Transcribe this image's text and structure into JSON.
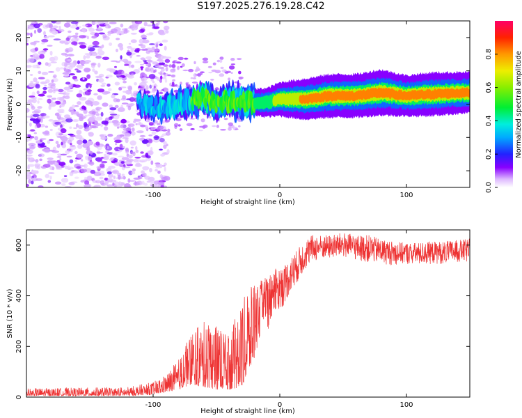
{
  "title": "S197.2025.276.19.28.C42",
  "chart_data": [
    {
      "type": "heatmap",
      "name": "spectrogram",
      "xlabel": "Height of straight line (km)",
      "ylabel": "Frequency (Hz)",
      "xlim": [
        -200,
        150
      ],
      "ylim": [
        -25,
        25
      ],
      "x_ticks": [
        -100,
        0,
        100
      ],
      "y_ticks": [
        20,
        10,
        0,
        -10,
        -20
      ],
      "colorbar": {
        "label": "Normalized spectral amplitude",
        "range": [
          0,
          1
        ],
        "ticks": [
          0.0,
          0.2,
          0.4,
          0.6,
          0.8
        ],
        "tick_labels": [
          "0.0",
          "0.2",
          "0.4",
          "0.6",
          "0.8"
        ]
      },
      "ridge": {
        "description_points_x": [
          -110,
          -90,
          -70,
          -60,
          -50,
          -40,
          -30,
          -20,
          -10,
          0,
          20,
          40,
          60,
          80,
          90,
          100,
          120,
          150
        ],
        "frequency_hz": [
          0,
          -1,
          1,
          2,
          0,
          1,
          1,
          0.5,
          0.5,
          1.5,
          1.5,
          2.5,
          2.5,
          3.5,
          3,
          2.5,
          3,
          3.5
        ],
        "amplitude": [
          0.3,
          0.35,
          0.45,
          0.5,
          0.45,
          0.5,
          0.5,
          0.55,
          0.6,
          0.7,
          0.85,
          0.9,
          0.9,
          0.95,
          0.9,
          0.85,
          0.9,
          0.85
        ]
      },
      "noise_region_x": [
        -200,
        -100
      ]
    },
    {
      "type": "line",
      "name": "snr",
      "xlabel": "Height of straight line (km)",
      "ylabel": "SNR (10 * v/v)",
      "xlim": [
        -200,
        150
      ],
      "ylim": [
        0,
        660
      ],
      "x_ticks": [
        -100,
        0,
        100
      ],
      "y_ticks": [
        0,
        200,
        400,
        600
      ],
      "color": "#ee3333",
      "envelope_x": [
        -200,
        -120,
        -100,
        -90,
        -80,
        -70,
        -60,
        -50,
        -40,
        -30,
        -25,
        -20,
        -15,
        -10,
        -5,
        0,
        5,
        10,
        15,
        20,
        25,
        30,
        40,
        50,
        60,
        70,
        80,
        90,
        100,
        110,
        120,
        130,
        140,
        150
      ],
      "envelope_low": [
        5,
        5,
        10,
        20,
        30,
        50,
        40,
        30,
        30,
        40,
        100,
        150,
        200,
        260,
        300,
        330,
        380,
        420,
        460,
        500,
        530,
        540,
        545,
        550,
        540,
        530,
        525,
        520,
        525,
        520,
        525,
        525,
        530,
        530
      ],
      "envelope_high": [
        35,
        40,
        60,
        90,
        150,
        250,
        300,
        280,
        250,
        380,
        420,
        450,
        460,
        480,
        500,
        520,
        530,
        560,
        590,
        620,
        640,
        640,
        640,
        650,
        640,
        640,
        625,
        615,
        610,
        610,
        615,
        615,
        620,
        625
      ]
    }
  ]
}
